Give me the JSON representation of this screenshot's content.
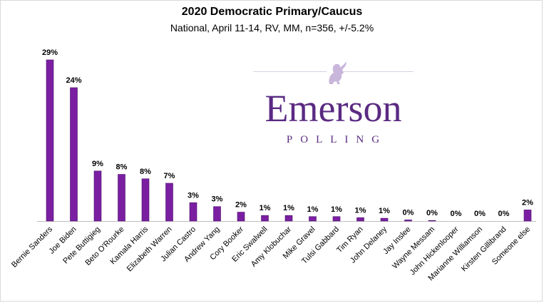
{
  "title": "2020 Democratic Primary/Caucus",
  "subtitle": "National, April 11-14, RV, MM, n=356, +/-5.2%",
  "logo": {
    "word": "Emerson",
    "sub": "POLLING"
  },
  "colors": {
    "bar": "#7b1fa2",
    "bar_edge": "#4a0e6b",
    "axis": "#bfbfbf",
    "logo": "#5a2a82"
  },
  "chart_data": {
    "type": "bar",
    "categories": [
      "Bernie Sanders",
      "Joe Biden",
      "Pete Buttigieg",
      "Beto O'Rourke",
      "Kamala Harris",
      "Elizabeth Warren",
      "Julian Castro",
      "Andrew Yang",
      "Cory Booker",
      "Eric Swalwell",
      "Amy Klobuchar",
      "Mike Gravel",
      "Tulsi Gabbard",
      "Tim Ryan",
      "John Delaney",
      "Jay Inslee",
      "Wayne Messam",
      "John Hickenlooper",
      "Marianne Williamson",
      "Kirsten Gillibrand",
      "Someone else"
    ],
    "values": [
      29,
      24,
      9,
      8,
      8,
      7,
      3,
      3,
      2,
      1,
      1,
      1,
      1,
      1,
      1,
      0,
      0,
      0,
      0,
      0,
      2
    ],
    "plotted": [
      29,
      24,
      9,
      8.4,
      7.6,
      6.8,
      3.3,
      2.6,
      1.6,
      1.0,
      1.0,
      0.8,
      0.8,
      0.6,
      0.5,
      0.2,
      0.1,
      0,
      0,
      0,
      2.0
    ],
    "labels": [
      "29%",
      "24%",
      "9%",
      "8%",
      "8%",
      "7%",
      "3%",
      "3%",
      "2%",
      "1%",
      "1%",
      "1%",
      "1%",
      "1%",
      "1%",
      "0%",
      "0%",
      "0%",
      "0%",
      "0%",
      "2%"
    ],
    "ylim": [
      0,
      29
    ]
  }
}
